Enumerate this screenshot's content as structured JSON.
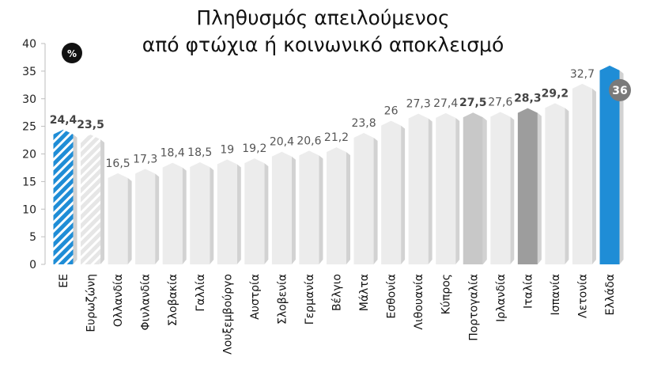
{
  "chart_data": {
    "type": "bar",
    "title": "Πληθυσμός απειλούμενος",
    "subtitle": "από φτώχια ή κοινωνικό αποκλεισμό",
    "unit_badge": "%",
    "ylim": [
      0,
      40
    ],
    "yticks": [
      "0",
      "5",
      "10",
      "15",
      "20",
      "25",
      "30",
      "35",
      "40"
    ],
    "grid": false,
    "categories": [
      "ΕΕ",
      "Ευρωζώνη",
      "Ολλανδία",
      "Φινλανδία",
      "Σλοβακία",
      "Γαλλία",
      "Λουξεμβούργο",
      "Αυστρία",
      "Σλοβενία",
      "Γερμανία",
      "Βέλγιο",
      "Μάλτα",
      "Εσθονία",
      "Λιθουανία",
      "Κύπρος",
      "Πορτογαλία",
      "Ιρλανδία",
      "Ιταλία",
      "Ισπανία",
      "Λετονία",
      "Ελλάδα"
    ],
    "values": [
      24.4,
      23.5,
      16.5,
      17.3,
      18.4,
      18.5,
      19,
      19.2,
      20.4,
      20.6,
      21.2,
      23.8,
      26,
      27.3,
      27.4,
      27.5,
      27.6,
      28.3,
      29.2,
      32.7,
      36
    ],
    "labels": [
      "24,4",
      "23,5",
      "16,5",
      "17,3",
      "18,4",
      "18,5",
      "19",
      "19,2",
      "20,4",
      "20,6",
      "21,2",
      "23,8",
      "26",
      "27,3",
      "27,4",
      "27,5",
      "27,6",
      "28,3",
      "29,2",
      "32,7",
      "36"
    ],
    "highlight": {
      "ΕΕ": "#1f8dd6",
      "Ευρωζώνη": "#e3e3e3",
      "Πορτογαλία": "#c8c8c8",
      "Ιταλία": "#9d9d9d",
      "Ελλάδα": "#1f8dd6"
    },
    "bold_labels": [
      "ΕΕ",
      "Ευρωζώνη",
      "Πορτογαλία",
      "Ιταλία",
      "Ισπανία",
      "Ελλάδα"
    ],
    "default_color": "#ececec"
  }
}
